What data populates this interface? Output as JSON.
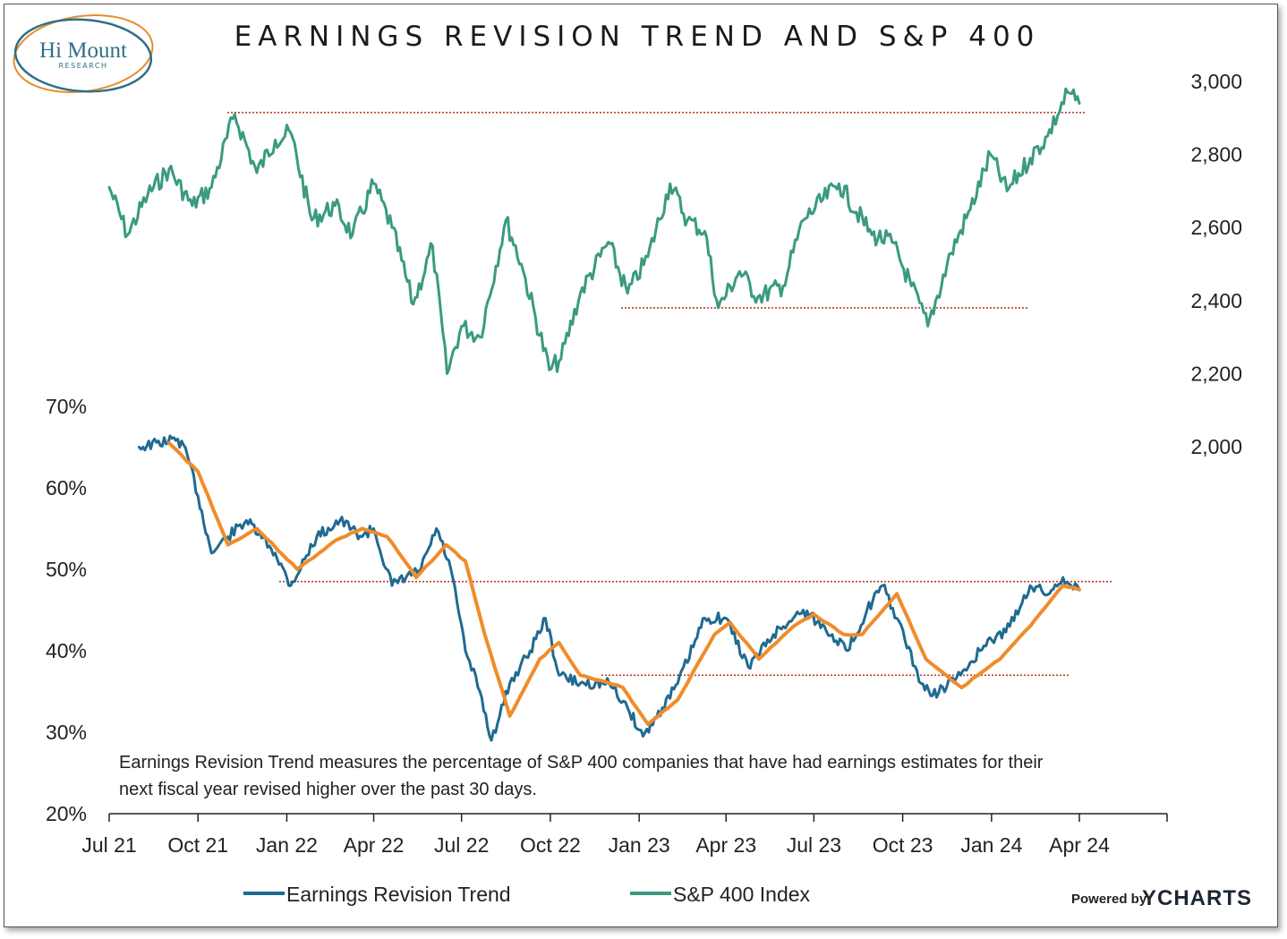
{
  "logo": {
    "main": "Hi Mount",
    "sub": "RESEARCH"
  },
  "title": "EARNINGS REVISION TREND AND S&P 400",
  "footnote": [
    "Earnings Revision Trend measures the percentage of S&P 400 companies that have had earnings estimates for their",
    "next fiscal year revised higher over the past 30 days."
  ],
  "powered_by": "Powered by",
  "brand": "YCHARTS",
  "colors": {
    "sp400": "#3a9a82",
    "ert": "#1f6a91",
    "ma": "#f08c2a",
    "ref": "#c0392b"
  },
  "chart_data": {
    "type": "line",
    "title": "EARNINGS REVISION TREND AND S&P 400",
    "x_ticks": [
      "Jul 21",
      "Oct 21",
      "Jan 22",
      "Apr 22",
      "Jul 22",
      "Oct 22",
      "Jan 23",
      "Apr 23",
      "Jul 23",
      "Oct 23",
      "Jan 24",
      "Apr 24"
    ],
    "y_left": {
      "ticks": [
        "70%",
        "60%",
        "50%",
        "40%",
        "30%",
        "20%"
      ],
      "range": [
        20,
        70
      ],
      "unit": "%"
    },
    "y_right": {
      "ticks": [
        "3,000",
        "2,800",
        "2,600",
        "2,400",
        "2,200",
        "2,000"
      ],
      "range": [
        2000,
        3000
      ]
    },
    "legend": [
      "Earnings Revision Trend",
      "S&P 400 Index"
    ],
    "reference_lines": {
      "sp400": [
        {
          "value": 2915,
          "from": "Oct 21",
          "to": "Apr 24"
        },
        {
          "value": 2380,
          "from": "Dec 22",
          "to": "Jan 24"
        }
      ],
      "ert": [
        {
          "value": 48.5,
          "from": "Jan 22",
          "to": "Apr 24"
        },
        {
          "value": 37,
          "from": "Dec 22",
          "to": "Apr 24"
        }
      ]
    },
    "series": [
      {
        "name": "S&P 400 Index",
        "axis": "right",
        "points": [
          [
            "2021-07-01",
            2710
          ],
          [
            "2021-07-20",
            2580
          ],
          [
            "2021-08-10",
            2690
          ],
          [
            "2021-09-01",
            2760
          ],
          [
            "2021-09-25",
            2660
          ],
          [
            "2021-10-15",
            2710
          ],
          [
            "2021-11-08",
            2910
          ],
          [
            "2021-12-01",
            2750
          ],
          [
            "2021-12-20",
            2840
          ],
          [
            "2022-01-05",
            2860
          ],
          [
            "2022-01-27",
            2620
          ],
          [
            "2022-02-20",
            2660
          ],
          [
            "2022-03-10",
            2580
          ],
          [
            "2022-04-01",
            2720
          ],
          [
            "2022-04-20",
            2600
          ],
          [
            "2022-05-12",
            2390
          ],
          [
            "2022-06-01",
            2550
          ],
          [
            "2022-06-16",
            2200
          ],
          [
            "2022-07-01",
            2330
          ],
          [
            "2022-07-20",
            2300
          ],
          [
            "2022-08-16",
            2620
          ],
          [
            "2022-09-01",
            2500
          ],
          [
            "2022-09-30",
            2210
          ],
          [
            "2022-10-12",
            2240
          ],
          [
            "2022-11-01",
            2420
          ],
          [
            "2022-11-30",
            2560
          ],
          [
            "2022-12-20",
            2420
          ],
          [
            "2023-01-10",
            2520
          ],
          [
            "2023-02-02",
            2720
          ],
          [
            "2023-02-20",
            2620
          ],
          [
            "2023-03-10",
            2590
          ],
          [
            "2023-03-24",
            2380
          ],
          [
            "2023-04-15",
            2480
          ],
          [
            "2023-05-04",
            2410
          ],
          [
            "2023-05-30",
            2440
          ],
          [
            "2023-06-20",
            2620
          ],
          [
            "2023-07-27",
            2720
          ],
          [
            "2023-08-30",
            2580
          ],
          [
            "2023-09-20",
            2560
          ],
          [
            "2023-10-10",
            2440
          ],
          [
            "2023-10-27",
            2330
          ],
          [
            "2023-11-20",
            2530
          ],
          [
            "2023-12-10",
            2650
          ],
          [
            "2023-12-31",
            2800
          ],
          [
            "2024-01-17",
            2700
          ],
          [
            "2024-02-10",
            2790
          ],
          [
            "2024-02-28",
            2850
          ],
          [
            "2024-03-20",
            2970
          ],
          [
            "2024-04-01",
            2940
          ]
        ]
      },
      {
        "name": "Earnings Revision Trend",
        "axis": "left",
        "points": [
          [
            "2021-08-01",
            65
          ],
          [
            "2021-09-10",
            66
          ],
          [
            "2021-09-20",
            64
          ],
          [
            "2021-10-01",
            59
          ],
          [
            "2021-10-15",
            52
          ],
          [
            "2021-11-01",
            54
          ],
          [
            "2021-11-20",
            56
          ],
          [
            "2021-12-20",
            52
          ],
          [
            "2022-01-05",
            48
          ],
          [
            "2022-02-01",
            54
          ],
          [
            "2022-02-25",
            56
          ],
          [
            "2022-03-20",
            54
          ],
          [
            "2022-04-01",
            55
          ],
          [
            "2022-04-20",
            48
          ],
          [
            "2022-05-20",
            50
          ],
          [
            "2022-06-05",
            55
          ],
          [
            "2022-06-20",
            50
          ],
          [
            "2022-07-05",
            40
          ],
          [
            "2022-07-20",
            35
          ],
          [
            "2022-08-01",
            29
          ],
          [
            "2022-08-20",
            36
          ],
          [
            "2022-09-10",
            40
          ],
          [
            "2022-09-26",
            44
          ],
          [
            "2022-10-10",
            37
          ],
          [
            "2022-11-01",
            36
          ],
          [
            "2022-12-01",
            36
          ],
          [
            "2022-12-20",
            33
          ],
          [
            "2023-01-05",
            29.5
          ],
          [
            "2023-01-25",
            33
          ],
          [
            "2023-02-10",
            36
          ],
          [
            "2023-03-10",
            44
          ],
          [
            "2023-04-01",
            44
          ],
          [
            "2023-04-24",
            38
          ],
          [
            "2023-05-20",
            42
          ],
          [
            "2023-06-20",
            45
          ],
          [
            "2023-07-20",
            42
          ],
          [
            "2023-08-05",
            40
          ],
          [
            "2023-08-25",
            45
          ],
          [
            "2023-09-10",
            48
          ],
          [
            "2023-09-25",
            44
          ],
          [
            "2023-10-20",
            36
          ],
          [
            "2023-11-01",
            34.5
          ],
          [
            "2023-11-30",
            37
          ],
          [
            "2023-12-20",
            40
          ],
          [
            "2024-01-20",
            43
          ],
          [
            "2024-02-10",
            48
          ],
          [
            "2024-03-01",
            47
          ],
          [
            "2024-03-15",
            49
          ],
          [
            "2024-04-01",
            47.5
          ]
        ]
      },
      {
        "name": "",
        "axis": "left",
        "points": [
          [
            "2021-09-01",
            65.5
          ],
          [
            "2021-10-01",
            62
          ],
          [
            "2021-11-01",
            53
          ],
          [
            "2021-12-01",
            55
          ],
          [
            "2022-01-12",
            50
          ],
          [
            "2022-02-20",
            53.5
          ],
          [
            "2022-03-20",
            55
          ],
          [
            "2022-04-15",
            54
          ],
          [
            "2022-05-15",
            49
          ],
          [
            "2022-06-15",
            53
          ],
          [
            "2022-07-05",
            51
          ],
          [
            "2022-07-25",
            42
          ],
          [
            "2022-08-20",
            32
          ],
          [
            "2022-09-20",
            39
          ],
          [
            "2022-10-10",
            41
          ],
          [
            "2022-11-01",
            37
          ],
          [
            "2022-12-15",
            35.5
          ],
          [
            "2023-01-10",
            31
          ],
          [
            "2023-02-10",
            34
          ],
          [
            "2023-03-20",
            42
          ],
          [
            "2023-04-05",
            43.5
          ],
          [
            "2023-05-05",
            39
          ],
          [
            "2023-06-10",
            43
          ],
          [
            "2023-07-01",
            44.5
          ],
          [
            "2023-08-01",
            42
          ],
          [
            "2023-08-20",
            42
          ],
          [
            "2023-09-25",
            47
          ],
          [
            "2023-10-25",
            39
          ],
          [
            "2023-12-01",
            35.5
          ],
          [
            "2024-01-10",
            39
          ],
          [
            "2024-02-10",
            43
          ],
          [
            "2024-03-15",
            48
          ],
          [
            "2024-04-01",
            47.5
          ]
        ]
      }
    ]
  }
}
